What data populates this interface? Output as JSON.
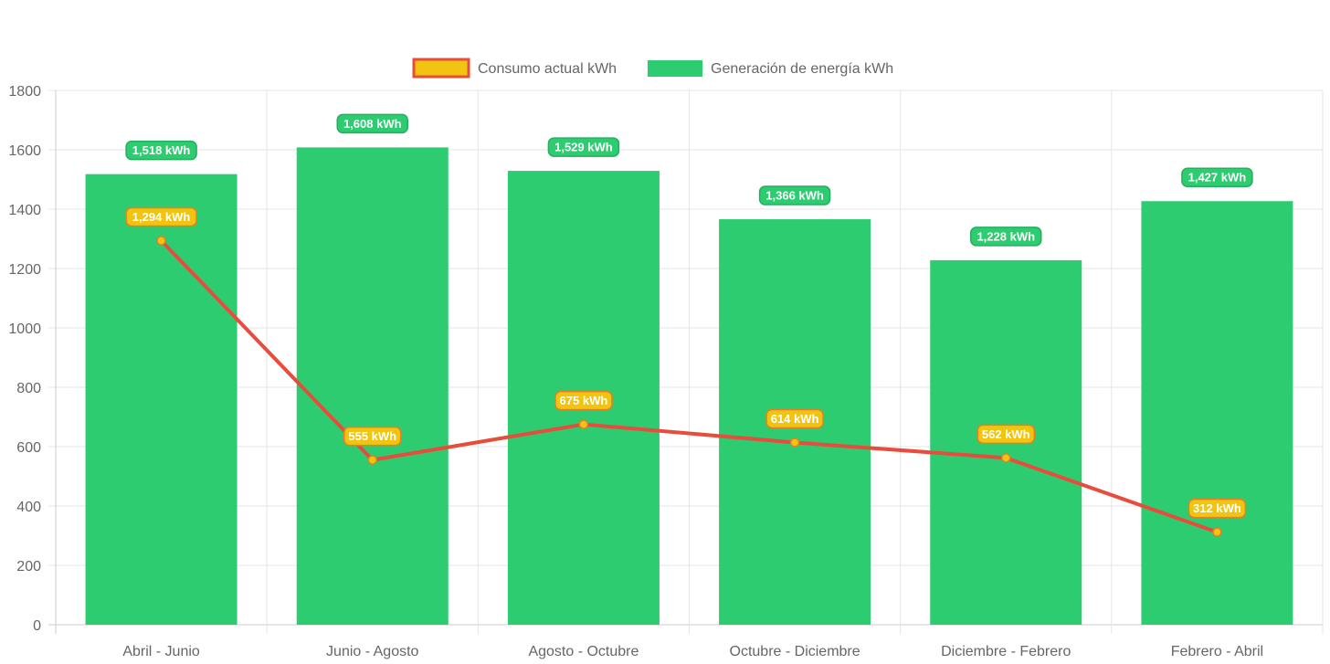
{
  "chart_data": {
    "type": "bar",
    "title": "",
    "xlabel": "",
    "ylabel": "",
    "categories": [
      "Abril - Junio",
      "Junio - Agosto",
      "Agosto - Octubre",
      "Octubre - Diciembre",
      "Diciembre - Febrero",
      "Febrero - Abril"
    ],
    "ylim": [
      0,
      1800
    ],
    "y_ticks": [
      0,
      200,
      400,
      600,
      800,
      1000,
      1200,
      1400,
      1600,
      1800
    ],
    "grid": true,
    "legend_position": "top-center",
    "series": [
      {
        "name": "Consumo actual kWh",
        "type": "line",
        "values": [
          1294,
          555,
          675,
          614,
          562,
          312
        ],
        "labels": [
          "1,294 kWh",
          "555 kWh",
          "675 kWh",
          "614 kWh",
          "562 kWh",
          "312 kWh"
        ],
        "line_color": "#e74c3c",
        "fill_color": "#f1c40f",
        "badge_color": "#f1c40f",
        "badge_border": "#e67e22"
      },
      {
        "name": "Generación de energía kWh",
        "type": "bar",
        "values": [
          1518,
          1608,
          1529,
          1366,
          1228,
          1427
        ],
        "labels": [
          "1,518 kWh",
          "1,608 kWh",
          "1,529 kWh",
          "1,366 kWh",
          "1,228 kWh",
          "1,427 kWh"
        ],
        "color": "#2ecc71",
        "badge_color": "#2ecc71",
        "badge_border": "#27ae60"
      }
    ]
  }
}
